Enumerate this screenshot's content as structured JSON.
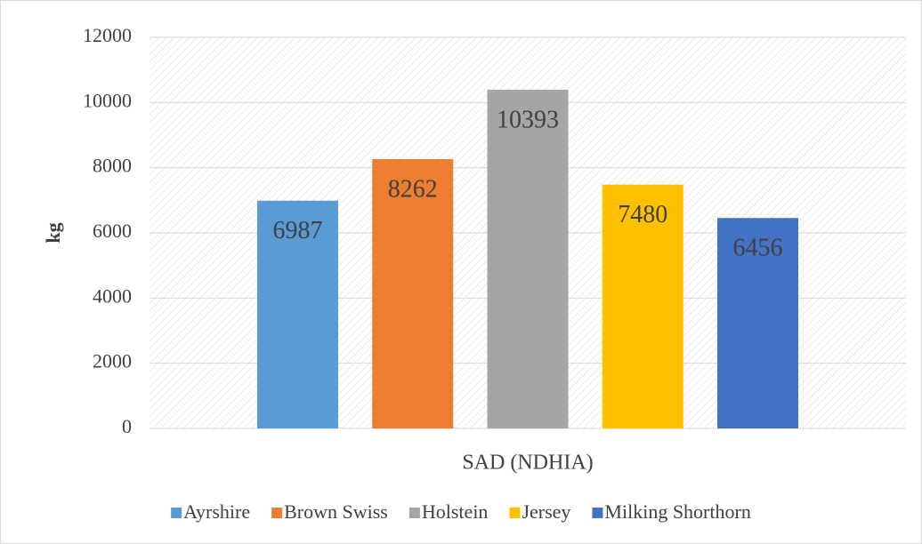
{
  "chart_data": {
    "type": "bar",
    "categories": [
      "SAD (NDHIA)"
    ],
    "y_label": "kg",
    "series": [
      {
        "name": "Ayrshire",
        "color": "#5b9bd5",
        "values": [
          6987
        ]
      },
      {
        "name": "Brown Swiss",
        "color": "#ed7d31",
        "values": [
          8262
        ]
      },
      {
        "name": "Holstein",
        "color": "#a5a5a5",
        "values": [
          10393
        ]
      },
      {
        "name": "Jersey",
        "color": "#ffc000",
        "values": [
          7480
        ]
      },
      {
        "name": "Milking Shorthorn",
        "color": "#4472c4",
        "values": [
          6456
        ]
      }
    ],
    "ylim": [
      0,
      12000
    ],
    "yticks": [
      0,
      2000,
      4000,
      6000,
      8000,
      10000,
      12000
    ],
    "grid": true,
    "legend": "bottom",
    "data_labels": true
  }
}
